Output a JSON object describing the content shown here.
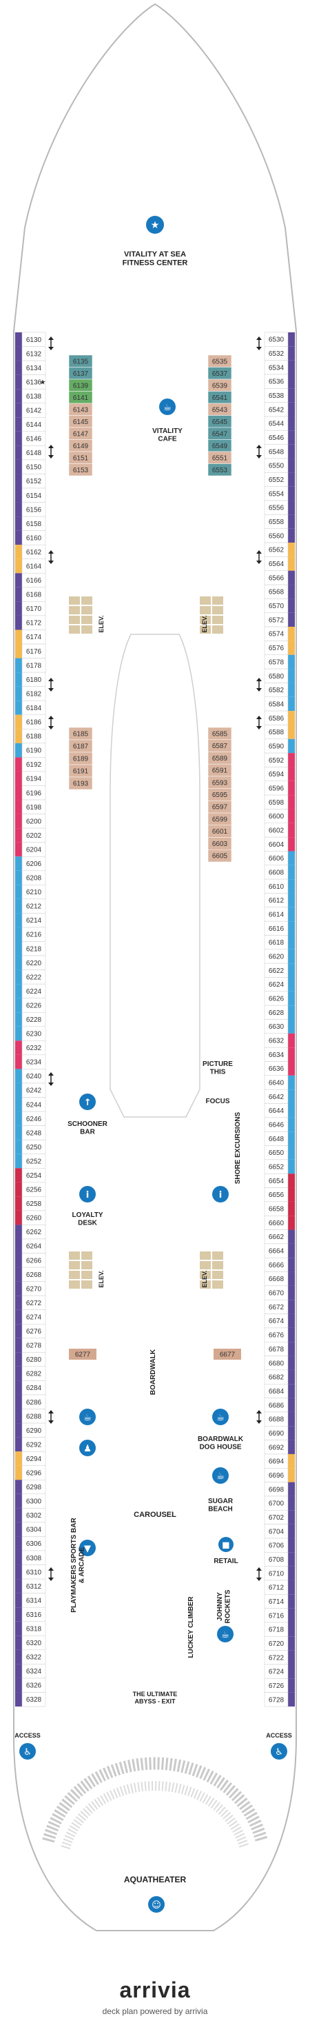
{
  "colors": {
    "purple": "#5d4a9a",
    "blue": "#3fa6dc",
    "orange": "#f6b94f",
    "pink": "#e2376a",
    "red": "#cf2b4b",
    "tan": "#d4a88f",
    "teal": "#3f8a8f",
    "green": "#4a9e4a",
    "icon_blue": "#1878bd"
  },
  "cabins_left_outer": [
    {
      "n": "6130",
      "c": "purple"
    },
    {
      "n": "6132",
      "c": "purple"
    },
    {
      "n": "6134",
      "c": "purple"
    },
    {
      "n": "6136",
      "c": "purple",
      "star": true
    },
    {
      "n": "6138",
      "c": "purple"
    },
    {
      "n": "6142",
      "c": "purple"
    },
    {
      "n": "6144",
      "c": "purple"
    },
    {
      "n": "6146",
      "c": "purple"
    },
    {
      "n": "6148",
      "c": "purple"
    },
    {
      "n": "6150",
      "c": "purple"
    },
    {
      "n": "6152",
      "c": "purple"
    },
    {
      "n": "6154",
      "c": "purple"
    },
    {
      "n": "6156",
      "c": "purple"
    },
    {
      "n": "6158",
      "c": "purple"
    },
    {
      "n": "6160",
      "c": "purple"
    },
    {
      "n": "6162",
      "c": "orange"
    },
    {
      "n": "6164",
      "c": "orange"
    },
    {
      "n": "6166",
      "c": "purple"
    },
    {
      "n": "6168",
      "c": "purple"
    },
    {
      "n": "6170",
      "c": "purple"
    },
    {
      "n": "6172",
      "c": "purple"
    },
    {
      "n": "6174",
      "c": "orange"
    },
    {
      "n": "6176",
      "c": "orange"
    },
    {
      "n": "6178",
      "c": "blue"
    },
    {
      "n": "6180",
      "c": "blue"
    },
    {
      "n": "6182",
      "c": "blue"
    },
    {
      "n": "6184",
      "c": "blue"
    },
    {
      "n": "6186",
      "c": "orange"
    },
    {
      "n": "6188",
      "c": "orange"
    },
    {
      "n": "6190",
      "c": "blue"
    },
    {
      "n": "6192",
      "c": "pink"
    },
    {
      "n": "6194",
      "c": "pink"
    },
    {
      "n": "6196",
      "c": "pink"
    },
    {
      "n": "6198",
      "c": "pink"
    },
    {
      "n": "6200",
      "c": "pink"
    },
    {
      "n": "6202",
      "c": "pink"
    },
    {
      "n": "6204",
      "c": "pink"
    },
    {
      "n": "6206",
      "c": "blue"
    },
    {
      "n": "6208",
      "c": "blue"
    },
    {
      "n": "6210",
      "c": "blue"
    },
    {
      "n": "6212",
      "c": "blue"
    },
    {
      "n": "6214",
      "c": "blue"
    },
    {
      "n": "6216",
      "c": "blue"
    },
    {
      "n": "6218",
      "c": "blue"
    },
    {
      "n": "6220",
      "c": "blue"
    },
    {
      "n": "6222",
      "c": "blue"
    },
    {
      "n": "6224",
      "c": "blue"
    },
    {
      "n": "6226",
      "c": "blue"
    },
    {
      "n": "6228",
      "c": "blue"
    },
    {
      "n": "6230",
      "c": "blue"
    },
    {
      "n": "6232",
      "c": "pink"
    },
    {
      "n": "6234",
      "c": "pink"
    },
    {
      "n": "6240",
      "c": "blue"
    },
    {
      "n": "6242",
      "c": "blue"
    },
    {
      "n": "6244",
      "c": "blue"
    },
    {
      "n": "6246",
      "c": "blue"
    },
    {
      "n": "6248",
      "c": "blue"
    },
    {
      "n": "6250",
      "c": "blue"
    },
    {
      "n": "6252",
      "c": "blue"
    },
    {
      "n": "6254",
      "c": "red"
    },
    {
      "n": "6256",
      "c": "red"
    },
    {
      "n": "6258",
      "c": "red"
    },
    {
      "n": "6260",
      "c": "red"
    },
    {
      "n": "6262",
      "c": "purple"
    },
    {
      "n": "6264",
      "c": "purple"
    },
    {
      "n": "6266",
      "c": "purple"
    },
    {
      "n": "6268",
      "c": "purple"
    },
    {
      "n": "6270",
      "c": "purple"
    },
    {
      "n": "6272",
      "c": "purple"
    },
    {
      "n": "6274",
      "c": "purple"
    },
    {
      "n": "6276",
      "c": "purple"
    },
    {
      "n": "6278",
      "c": "purple"
    },
    {
      "n": "6280",
      "c": "purple"
    },
    {
      "n": "6282",
      "c": "purple"
    },
    {
      "n": "6284",
      "c": "purple"
    },
    {
      "n": "6286",
      "c": "purple"
    },
    {
      "n": "6288",
      "c": "purple"
    },
    {
      "n": "6290",
      "c": "purple"
    },
    {
      "n": "6292",
      "c": "purple"
    },
    {
      "n": "6294",
      "c": "orange"
    },
    {
      "n": "6296",
      "c": "orange"
    },
    {
      "n": "6298",
      "c": "purple"
    },
    {
      "n": "6300",
      "c": "purple"
    },
    {
      "n": "6302",
      "c": "purple"
    },
    {
      "n": "6304",
      "c": "purple"
    },
    {
      "n": "6306",
      "c": "purple"
    },
    {
      "n": "6308",
      "c": "purple"
    },
    {
      "n": "6310",
      "c": "purple"
    },
    {
      "n": "6312",
      "c": "purple"
    },
    {
      "n": "6314",
      "c": "purple"
    },
    {
      "n": "6316",
      "c": "purple"
    },
    {
      "n": "6318",
      "c": "purple"
    },
    {
      "n": "6320",
      "c": "purple"
    },
    {
      "n": "6322",
      "c": "purple"
    },
    {
      "n": "6324",
      "c": "purple"
    },
    {
      "n": "6326",
      "c": "purple"
    },
    {
      "n": "6328",
      "c": "purple"
    }
  ],
  "cabins_right_outer": [
    {
      "n": "6530",
      "c": "purple"
    },
    {
      "n": "6532",
      "c": "purple"
    },
    {
      "n": "6534",
      "c": "purple"
    },
    {
      "n": "6536",
      "c": "purple"
    },
    {
      "n": "6538",
      "c": "purple"
    },
    {
      "n": "6542",
      "c": "purple"
    },
    {
      "n": "6544",
      "c": "purple"
    },
    {
      "n": "6546",
      "c": "purple"
    },
    {
      "n": "6548",
      "c": "purple"
    },
    {
      "n": "6550",
      "c": "purple"
    },
    {
      "n": "6552",
      "c": "purple"
    },
    {
      "n": "6554",
      "c": "purple"
    },
    {
      "n": "6556",
      "c": "purple"
    },
    {
      "n": "6558",
      "c": "purple"
    },
    {
      "n": "6560",
      "c": "purple"
    },
    {
      "n": "6562",
      "c": "orange"
    },
    {
      "n": "6564",
      "c": "orange"
    },
    {
      "n": "6566",
      "c": "purple"
    },
    {
      "n": "6568",
      "c": "purple"
    },
    {
      "n": "6570",
      "c": "purple"
    },
    {
      "n": "6572",
      "c": "purple"
    },
    {
      "n": "6574",
      "c": "orange"
    },
    {
      "n": "6576",
      "c": "orange"
    },
    {
      "n": "6578",
      "c": "blue"
    },
    {
      "n": "6580",
      "c": "blue"
    },
    {
      "n": "6582",
      "c": "blue"
    },
    {
      "n": "6584",
      "c": "blue"
    },
    {
      "n": "6586",
      "c": "orange"
    },
    {
      "n": "6588",
      "c": "orange"
    },
    {
      "n": "6590",
      "c": "blue"
    },
    {
      "n": "6592",
      "c": "pink"
    },
    {
      "n": "6594",
      "c": "pink"
    },
    {
      "n": "6596",
      "c": "pink"
    },
    {
      "n": "6598",
      "c": "pink"
    },
    {
      "n": "6600",
      "c": "pink"
    },
    {
      "n": "6602",
      "c": "pink"
    },
    {
      "n": "6604",
      "c": "pink"
    },
    {
      "n": "6606",
      "c": "blue"
    },
    {
      "n": "6608",
      "c": "blue"
    },
    {
      "n": "6610",
      "c": "blue"
    },
    {
      "n": "6612",
      "c": "blue"
    },
    {
      "n": "6614",
      "c": "blue"
    },
    {
      "n": "6616",
      "c": "blue"
    },
    {
      "n": "6618",
      "c": "blue"
    },
    {
      "n": "6620",
      "c": "blue"
    },
    {
      "n": "6622",
      "c": "blue"
    },
    {
      "n": "6624",
      "c": "blue"
    },
    {
      "n": "6626",
      "c": "blue"
    },
    {
      "n": "6628",
      "c": "blue"
    },
    {
      "n": "6630",
      "c": "blue"
    },
    {
      "n": "6632",
      "c": "pink"
    },
    {
      "n": "6634",
      "c": "pink"
    },
    {
      "n": "6636",
      "c": "pink"
    },
    {
      "n": "6640",
      "c": "blue"
    },
    {
      "n": "6642",
      "c": "blue"
    },
    {
      "n": "6644",
      "c": "blue"
    },
    {
      "n": "6646",
      "c": "blue"
    },
    {
      "n": "6648",
      "c": "blue"
    },
    {
      "n": "6650",
      "c": "blue"
    },
    {
      "n": "6652",
      "c": "blue"
    },
    {
      "n": "6654",
      "c": "red"
    },
    {
      "n": "6656",
      "c": "red"
    },
    {
      "n": "6658",
      "c": "red"
    },
    {
      "n": "6660",
      "c": "red"
    },
    {
      "n": "6662",
      "c": "purple"
    },
    {
      "n": "6664",
      "c": "purple"
    },
    {
      "n": "6666",
      "c": "purple"
    },
    {
      "n": "6668",
      "c": "purple"
    },
    {
      "n": "6670",
      "c": "purple"
    },
    {
      "n": "6672",
      "c": "purple"
    },
    {
      "n": "6674",
      "c": "purple"
    },
    {
      "n": "6676",
      "c": "purple"
    },
    {
      "n": "6678",
      "c": "purple"
    },
    {
      "n": "6680",
      "c": "purple"
    },
    {
      "n": "6682",
      "c": "purple"
    },
    {
      "n": "6684",
      "c": "purple"
    },
    {
      "n": "6686",
      "c": "purple"
    },
    {
      "n": "6688",
      "c": "purple"
    },
    {
      "n": "6690",
      "c": "purple"
    },
    {
      "n": "6692",
      "c": "purple"
    },
    {
      "n": "6694",
      "c": "orange"
    },
    {
      "n": "6696",
      "c": "orange"
    },
    {
      "n": "6698",
      "c": "purple"
    },
    {
      "n": "6700",
      "c": "purple"
    },
    {
      "n": "6702",
      "c": "purple"
    },
    {
      "n": "6704",
      "c": "purple"
    },
    {
      "n": "6706",
      "c": "purple"
    },
    {
      "n": "6708",
      "c": "purple"
    },
    {
      "n": "6710",
      "c": "purple"
    },
    {
      "n": "6712",
      "c": "purple"
    },
    {
      "n": "6714",
      "c": "purple"
    },
    {
      "n": "6716",
      "c": "purple"
    },
    {
      "n": "6718",
      "c": "purple"
    },
    {
      "n": "6720",
      "c": "purple"
    },
    {
      "n": "6722",
      "c": "purple"
    },
    {
      "n": "6724",
      "c": "purple"
    },
    {
      "n": "6726",
      "c": "purple"
    },
    {
      "n": "6728",
      "c": "purple"
    }
  ],
  "cabins_left_inner_fwd": [
    {
      "n": "6135",
      "c": "teal"
    },
    {
      "n": "6137",
      "c": "teal"
    },
    {
      "n": "6139",
      "c": "green"
    },
    {
      "n": "6141",
      "c": "green"
    },
    {
      "n": "6143",
      "c": "tan"
    },
    {
      "n": "6145",
      "c": "tan"
    },
    {
      "n": "6147",
      "c": "tan"
    },
    {
      "n": "6149",
      "c": "tan"
    },
    {
      "n": "6151",
      "c": "tan"
    },
    {
      "n": "6153",
      "c": "tan"
    }
  ],
  "cabins_right_inner_fwd": [
    {
      "n": "6535",
      "c": "tan"
    },
    {
      "n": "6537",
      "c": "teal"
    },
    {
      "n": "6539",
      "c": "tan"
    },
    {
      "n": "6541",
      "c": "teal"
    },
    {
      "n": "6543",
      "c": "tan"
    },
    {
      "n": "6545",
      "c": "teal"
    },
    {
      "n": "6547",
      "c": "teal"
    },
    {
      "n": "6549",
      "c": "teal"
    },
    {
      "n": "6551",
      "c": "tan"
    },
    {
      "n": "6553",
      "c": "teal"
    }
  ],
  "cabins_left_inner_mid": [
    {
      "n": "6185",
      "c": "tan"
    },
    {
      "n": "6187",
      "c": "tan"
    },
    {
      "n": "6189",
      "c": "tan"
    },
    {
      "n": "6191",
      "c": "tan"
    },
    {
      "n": "6193",
      "c": "tan"
    }
  ],
  "cabins_right_inner_mid": [
    {
      "n": "6585",
      "c": "tan"
    },
    {
      "n": "6587",
      "c": "tan"
    },
    {
      "n": "6589",
      "c": "tan"
    },
    {
      "n": "6591",
      "c": "tan"
    },
    {
      "n": "6593",
      "c": "tan"
    },
    {
      "n": "6595",
      "c": "tan"
    },
    {
      "n": "6597",
      "c": "tan"
    },
    {
      "n": "6599",
      "c": "tan"
    },
    {
      "n": "6601",
      "c": "tan"
    },
    {
      "n": "6603",
      "c": "tan"
    },
    {
      "n": "6605",
      "c": "tan"
    }
  ],
  "cabin_6277": "6277",
  "cabin_6677": "6677",
  "labels": {
    "fitness": "VITALITY AT SEA\nFITNESS CENTER",
    "cafe": "VITALITY\nCAFE",
    "elev": "ELEV.",
    "picture": "PICTURE\nTHIS",
    "focus": "FOCUS",
    "schooner": "SCHOONER\nBAR",
    "shore": "SHORE EXCURSIONS",
    "loyalty": "LOYALTY\nDESK",
    "boardwalk": "BOARDWALK",
    "doghouse": "BOARDWALK\nDOG HOUSE",
    "playmakers": "PLAYMAKERS SPORTS BAR\n& ARCADE",
    "carousel": "CAROUSEL",
    "sugar": "SUGAR\nBEACH",
    "retail": "RETAIL",
    "luckey": "LUCKEY CLIMBER",
    "johnny": "JOHNNY\nROCKETS",
    "abyss": "THE ULTIMATE\nABYSS - EXIT",
    "access": "ACCESS",
    "aquatheater": "AQUATHEATER"
  },
  "footer": {
    "brand": "arrivia",
    "tagline": "deck plan powered by arrivia"
  }
}
